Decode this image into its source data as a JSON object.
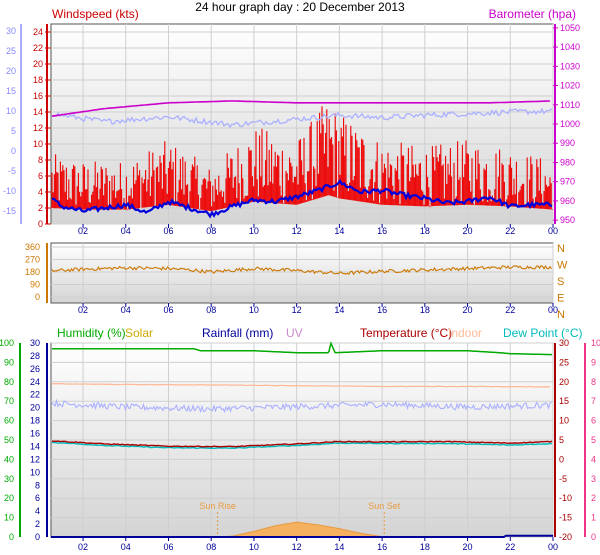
{
  "title": "24 hour graph day : 20 December 2013",
  "colors": {
    "wind": "#ee0000",
    "gust_dark": "#0000dd",
    "baro": "#cc00cc",
    "temp_scale_left": "#8888ff",
    "wind_dir": "#cc7700",
    "humidity": "#00aa00",
    "solar": "#ccaa00",
    "rainfall": "#000099",
    "uv": "#cc88cc",
    "temperature": "#aa0000",
    "indoor": "#ffbb99",
    "dewpoint": "#00bbbb",
    "pink_axis": "#ee3388"
  },
  "chart_data": [
    {
      "type": "line",
      "title": "24 hour graph day : 20 December 2013",
      "x_ticks": [
        "02",
        "04",
        "06",
        "08",
        "10",
        "12",
        "14",
        "16",
        "18",
        "20",
        "22",
        "00"
      ],
      "left_axis_label": "Windspeed (kts)",
      "left_ticks": [
        "0",
        "2",
        "4",
        "6",
        "8",
        "10",
        "12",
        "14",
        "16",
        "18",
        "20",
        "22",
        "24"
      ],
      "outer_left_ticks": [
        "-15",
        "-10",
        "-5",
        "0",
        "5",
        "10",
        "15",
        "20",
        "25",
        "30"
      ],
      "right_axis_label": "Barometer (hpa)",
      "right_ticks": [
        "950",
        "960",
        "970",
        "980",
        "990",
        "1000",
        "1010",
        "1020",
        "1030",
        "1040",
        "1050"
      ],
      "ylim_left": [
        0,
        25
      ],
      "ylim_right": [
        948,
        1052
      ],
      "series": [
        {
          "name": "Barometer",
          "x": [
            0.5,
            3,
            6,
            9,
            12,
            15,
            18,
            21,
            24
          ],
          "values": [
            1004,
            1008,
            1011,
            1012,
            1011,
            1011,
            1011,
            1011,
            1012
          ]
        },
        {
          "x": [
            0.5,
            3,
            6,
            9,
            12,
            14,
            16,
            18,
            20,
            22,
            24
          ],
          "values": [
            13.8,
            12.8,
            13.4,
            12.4,
            13.1,
            13.6,
            13.3,
            13.6,
            13.8,
            14.0,
            14.1
          ]
        },
        {
          "name": "Windspeed",
          "x": [
            0.5,
            2,
            4,
            6,
            8,
            10,
            12,
            13.5,
            14,
            16,
            18,
            20,
            22,
            24
          ],
          "values": [
            5,
            4.5,
            4.5,
            6,
            4,
            7,
            6,
            9,
            8,
            6,
            5.5,
            6,
            5.5,
            4.5
          ]
        },
        {
          "x": [
            0.5,
            1,
            2,
            3,
            4,
            5,
            6,
            7,
            8,
            9,
            10,
            11,
            12,
            13,
            14,
            15,
            16,
            17,
            18,
            19,
            20,
            21,
            22,
            23,
            24
          ],
          "values": [
            3.2,
            2.2,
            1.6,
            2.0,
            2.4,
            1.4,
            2.8,
            2.0,
            1.2,
            2.2,
            3.0,
            2.8,
            3.4,
            4.2,
            5.2,
            4.0,
            4.2,
            3.6,
            3.2,
            2.6,
            2.8,
            3.4,
            2.2,
            2.4,
            2.4
          ]
        }
      ]
    },
    {
      "type": "line",
      "x_ticks": [
        "02",
        "04",
        "06",
        "08",
        "10",
        "12",
        "14",
        "16",
        "18",
        "20",
        "22",
        "00"
      ],
      "left_ticks": [
        "0",
        "90",
        "180",
        "270",
        "360"
      ],
      "right_labels": [
        "N",
        "W",
        "S",
        "E",
        "N"
      ],
      "ylim": [
        0,
        360
      ],
      "series": [
        {
          "name": "Wind direction",
          "x": [
            0.5,
            2,
            4,
            6,
            7,
            8,
            10,
            12,
            14,
            16,
            18,
            20,
            22,
            24
          ],
          "values": [
            188,
            200,
            210,
            205,
            195,
            180,
            205,
            190,
            170,
            185,
            195,
            205,
            215,
            215
          ]
        }
      ]
    },
    {
      "type": "line",
      "x_ticks": [
        "02",
        "04",
        "06",
        "08",
        "10",
        "12",
        "14",
        "16",
        "18",
        "20",
        "22",
        "00"
      ],
      "legend": [
        "Humidity (%)",
        "Solar",
        "Rainfall (mm)",
        "UV",
        "Temperature (°C)",
        "Indoor",
        "Dew Point (°C)"
      ],
      "humidity_ticks": [
        "0",
        "10",
        "20",
        "30",
        "40",
        "50",
        "60",
        "70",
        "80",
        "90",
        "100"
      ],
      "rain_ticks": [
        "0",
        "2",
        "4",
        "6",
        "8",
        "10",
        "12",
        "14",
        "16",
        "18",
        "20",
        "22",
        "24",
        "26",
        "28",
        "30"
      ],
      "temp_ticks": [
        "-20",
        "-15",
        "-10",
        "-5",
        "0",
        "5",
        "10",
        "15",
        "20",
        "25",
        "30"
      ],
      "uv_ticks": [
        "0",
        "1",
        "2",
        "3",
        "4",
        "5",
        "6",
        "7",
        "8",
        "9",
        "10"
      ],
      "annotations": {
        "sunrise": "Sun Rise",
        "sunset": "Sun Set",
        "sunrise_hour": 8.3,
        "sunset_hour": 16.1
      },
      "series": [
        {
          "name": "Humidity",
          "x": [
            0.5,
            2,
            4,
            6,
            7.2,
            7.5,
            10,
            12,
            13.5,
            13.6,
            13.8,
            16,
            18,
            20,
            21.5,
            22,
            24
          ],
          "values": [
            97,
            97,
            97,
            97,
            97,
            96,
            96,
            95,
            95,
            100,
            95,
            96,
            96,
            96,
            95,
            94.5,
            94
          ]
        },
        {
          "name": "Temperature",
          "x": [
            0.5,
            3,
            6,
            9,
            12,
            14,
            16,
            19,
            22,
            24
          ],
          "values": [
            4.8,
            4.0,
            3.4,
            3.3,
            4.0,
            4.6,
            4.5,
            4.6,
            4.2,
            4.6
          ]
        },
        {
          "name": "Dew Point",
          "x": [
            0.5,
            3,
            6,
            9,
            12,
            14,
            16,
            19,
            22,
            24
          ],
          "values": [
            4.4,
            3.6,
            3.0,
            2.9,
            3.6,
            4.2,
            4.1,
            4.1,
            3.7,
            4.1
          ]
        },
        {
          "name": "Indoor",
          "x": [
            0.5,
            4,
            8,
            12,
            16,
            20,
            24
          ],
          "values": [
            19.5,
            19.3,
            19.2,
            19.0,
            18.8,
            18.8,
            18.7
          ]
        },
        {
          "x": [
            0.5,
            4,
            8,
            12,
            16,
            20,
            24
          ],
          "values": [
            14.5,
            13.5,
            13.0,
            13.6,
            14.2,
            13.5,
            14.0
          ]
        },
        {
          "name": "Solar",
          "x": [
            8.3,
            9,
            10,
            11,
            12,
            13,
            14,
            15,
            16.1
          ],
          "values": [
            0,
            0.1,
            0.6,
            1.2,
            1.6,
            1.3,
            0.9,
            0.4,
            0
          ]
        },
        {
          "name": "Rainfall",
          "x": [
            0.5,
            21.7,
            21.8,
            24
          ],
          "values": [
            0,
            0,
            0.2,
            0.2
          ]
        }
      ]
    }
  ]
}
